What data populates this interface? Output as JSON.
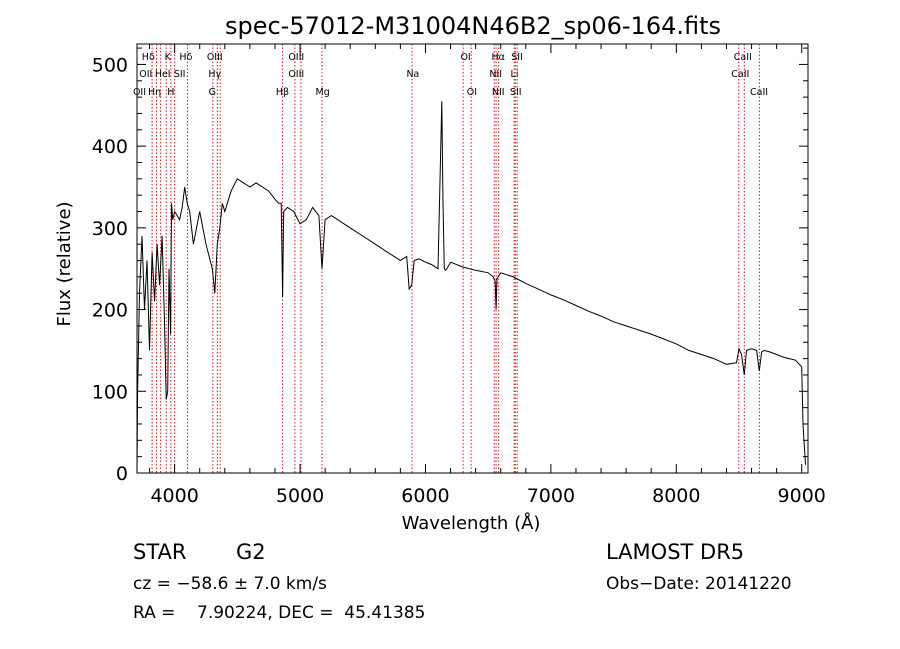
{
  "chart_data": {
    "type": "line",
    "title": "spec-57012-M31004N46B2_sp06-164.fits",
    "xlabel": "Wavelength (Å)",
    "ylabel": "Flux (relative)",
    "xlim": [
      3700,
      9050
    ],
    "ylim": [
      0,
      525
    ],
    "x_ticks": [
      4000,
      5000,
      6000,
      7000,
      8000,
      9000
    ],
    "y_ticks": [
      0,
      100,
      200,
      300,
      400,
      500
    ],
    "grid": false,
    "series": [
      {
        "x": [
          3700,
          3705,
          3720,
          3740,
          3760,
          3780,
          3800,
          3820,
          3840,
          3860,
          3880,
          3900,
          3920,
          3933,
          3945,
          3955,
          3968,
          3975,
          3985,
          4000,
          4020,
          4040,
          4060,
          4080,
          4100,
          4120,
          4150,
          4200,
          4250,
          4300,
          4320,
          4340,
          4360,
          4380,
          4400,
          4450,
          4500,
          4550,
          4600,
          4650,
          4700,
          4750,
          4800,
          4830,
          4850,
          4861,
          4870,
          4900,
          4950,
          5000,
          5050,
          5100,
          5150,
          5175,
          5200,
          5250,
          5300,
          5400,
          5500,
          5600,
          5700,
          5800,
          5850,
          5870,
          5890,
          5910,
          5950,
          6000,
          6050,
          6100,
          6130,
          6140,
          6150,
          6160,
          6170,
          6200,
          6300,
          6400,
          6500,
          6540,
          6555,
          6563,
          6570,
          6600,
          6700,
          6800,
          6900,
          7000,
          7100,
          7200,
          7300,
          7400,
          7500,
          7600,
          7700,
          7800,
          7900,
          8000,
          8100,
          8200,
          8300,
          8400,
          8480,
          8500,
          8520,
          8542,
          8560,
          8600,
          8640,
          8662,
          8680,
          8700,
          8750,
          8800,
          8850,
          8900,
          8950,
          9000,
          9010,
          9030
        ],
        "y": [
          0,
          100,
          220,
          290,
          200,
          260,
          150,
          270,
          210,
          280,
          230,
          290,
          180,
          90,
          100,
          250,
          170,
          330,
          310,
          320,
          315,
          310,
          325,
          350,
          330,
          320,
          280,
          320,
          280,
          250,
          220,
          280,
          300,
          330,
          320,
          345,
          360,
          355,
          350,
          355,
          350,
          345,
          335,
          330,
          330,
          215,
          320,
          325,
          320,
          305,
          310,
          325,
          315,
          250,
          310,
          315,
          310,
          300,
          290,
          280,
          270,
          260,
          265,
          225,
          230,
          260,
          262,
          258,
          255,
          250,
          455,
          330,
          250,
          248,
          250,
          258,
          252,
          248,
          245,
          240,
          235,
          200,
          238,
          245,
          240,
          232,
          225,
          218,
          212,
          205,
          198,
          192,
          185,
          180,
          175,
          170,
          164,
          158,
          150,
          145,
          140,
          133,
          135,
          152,
          145,
          120,
          150,
          152,
          150,
          125,
          148,
          150,
          148,
          145,
          142,
          140,
          138,
          130,
          60,
          10
        ]
      }
    ],
    "lines": [
      {
        "label": "Hδ",
        "label2": "CaII",
        "x": 3820
      },
      {
        "label": "OII",
        "label2": "",
        "x": 3855
      },
      {
        "label": "Hε",
        "label2": "Hη",
        "x": 3889
      },
      {
        "label": "K",
        "label2": "H",
        "x": 3933
      },
      {
        "label": "HeI",
        "label2": "",
        "x": 3970
      },
      {
        "label": "SII",
        "label2": "",
        "x": 4000
      },
      {
        "label": "Hδ",
        "label2": "",
        "x": 4102
      },
      {
        "label": "OIII",
        "label2": "G",
        "x": 4305
      },
      {
        "label": "Hγ",
        "label2": "",
        "x": 4340
      },
      {
        "label": "",
        "label2": "",
        "x": 4363
      },
      {
        "label": "Hβ",
        "label2": "",
        "x": 4861
      },
      {
        "label": "OIII",
        "label2": "",
        "x": 4959
      },
      {
        "label": "OIII",
        "label2": "",
        "x": 5007
      },
      {
        "label": "Mg",
        "label2": "",
        "x": 5175
      },
      {
        "label": "Na",
        "label2": "",
        "x": 5893
      },
      {
        "label": "OI",
        "label2": "",
        "x": 6300
      },
      {
        "label": "OI",
        "label2": "",
        "x": 6364
      },
      {
        "label": "NII",
        "label2": "",
        "x": 6548
      },
      {
        "label": "Hα",
        "label2": "",
        "x": 6563
      },
      {
        "label": "NII",
        "label2": "",
        "x": 6584
      },
      {
        "label": "Li",
        "label2": "",
        "x": 6707
      },
      {
        "label": "SII",
        "label2": "",
        "x": 6716
      },
      {
        "label": "SII",
        "label2": "",
        "x": 6731
      },
      {
        "label": "CaII",
        "label2": "",
        "x": 8498
      },
      {
        "label": "CaII",
        "label2": "",
        "x": 8542
      },
      {
        "label": "CaII",
        "label2": "",
        "x": 8662
      }
    ],
    "line_labels": [
      {
        "text": "Hδ",
        "row": 0,
        "x": 3790
      },
      {
        "text": "K",
        "row": 0,
        "x": 3945
      },
      {
        "text": "Hδ",
        "row": 0,
        "x": 4090
      },
      {
        "text": "OIII",
        "row": 0,
        "x": 4320
      },
      {
        "text": "OIII",
        "row": 0,
        "x": 4970
      },
      {
        "text": "OI",
        "row": 0,
        "x": 6320
      },
      {
        "text": "Hα",
        "row": 0,
        "x": 6580
      },
      {
        "text": "SII",
        "row": 0,
        "x": 6730
      },
      {
        "text": "CaII",
        "row": 0,
        "x": 8530
      },
      {
        "text": "OII",
        "row": 1,
        "x": 3770
      },
      {
        "text": "HeI",
        "row": 1,
        "x": 3905
      },
      {
        "text": "SII",
        "row": 1,
        "x": 4040
      },
      {
        "text": "Hγ",
        "row": 1,
        "x": 4320
      },
      {
        "text": "OIII",
        "row": 1,
        "x": 4970
      },
      {
        "text": "Na",
        "row": 1,
        "x": 5900
      },
      {
        "text": "NII",
        "row": 1,
        "x": 6560
      },
      {
        "text": "Li",
        "row": 1,
        "x": 6710
      },
      {
        "text": "CaII",
        "row": 1,
        "x": 8510
      },
      {
        "text": "OII",
        "row": 2,
        "x": 3720
      },
      {
        "text": "Hη",
        "row": 2,
        "x": 3840
      },
      {
        "text": "H",
        "row": 2,
        "x": 3970
      },
      {
        "text": "G",
        "row": 2,
        "x": 4300
      },
      {
        "text": "Hβ",
        "row": 2,
        "x": 4860
      },
      {
        "text": "Mg",
        "row": 2,
        "x": 5180
      },
      {
        "text": "OI",
        "row": 2,
        "x": 6370
      },
      {
        "text": "NII",
        "row": 2,
        "x": 6580
      },
      {
        "text": "SII",
        "row": 2,
        "x": 6720
      },
      {
        "text": "CaII",
        "row": 2,
        "x": 8660
      }
    ],
    "colors": {
      "spectrum": "#000000",
      "lines": "#cc0000",
      "axes": "#000000"
    }
  },
  "info": {
    "class": "STAR",
    "subclass": "G2",
    "survey": "LAMOST DR5",
    "cz": "cz = −58.6 ± 7.0 km/s",
    "obs_date": "Obs−Date: 20141220",
    "radec": "RA =    7.90224, DEC =  45.41385"
  }
}
